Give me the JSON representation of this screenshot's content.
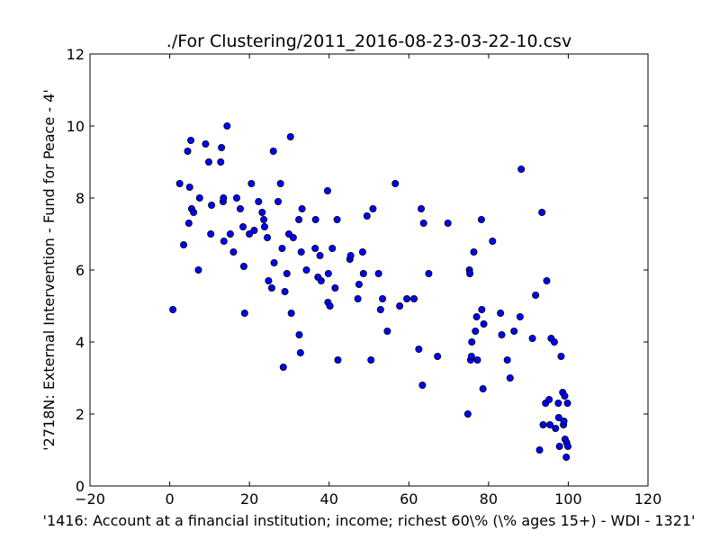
{
  "chart_data": {
    "type": "scatter",
    "title": "./For Clustering/2011_2016-08-23-03-22-10.csv",
    "xlabel": "'1416: Account at a financial institution; income; richest 60\\%  (\\% ages 15+) - WDI - 1321'",
    "ylabel": "'2718N: External Intervention - Fund for Peace - 4'",
    "xlim": [
      -20,
      120
    ],
    "ylim": [
      0,
      12
    ],
    "xticks": [
      -20,
      0,
      20,
      40,
      60,
      80,
      100,
      120
    ],
    "yticks": [
      0,
      2,
      4,
      6,
      8,
      10,
      12
    ],
    "grid": false,
    "marker_color": "#0000ff",
    "points": [
      [
        0.8,
        4.9
      ],
      [
        2.5,
        8.4
      ],
      [
        3.5,
        6.7
      ],
      [
        4.5,
        9.3
      ],
      [
        4.8,
        7.3
      ],
      [
        5.0,
        8.3
      ],
      [
        5.3,
        9.6
      ],
      [
        5.5,
        7.7
      ],
      [
        6.0,
        7.6
      ],
      [
        7.2,
        6.0
      ],
      [
        7.5,
        8.0
      ],
      [
        9.0,
        9.5
      ],
      [
        9.8,
        9.0
      ],
      [
        10.3,
        7.0
      ],
      [
        10.5,
        7.8
      ],
      [
        12.8,
        9.0
      ],
      [
        13.0,
        9.4
      ],
      [
        13.4,
        7.9
      ],
      [
        13.5,
        8.0
      ],
      [
        13.6,
        6.8
      ],
      [
        14.4,
        10.0
      ],
      [
        15.2,
        7.0
      ],
      [
        16.0,
        6.5
      ],
      [
        16.8,
        8.0
      ],
      [
        17.7,
        7.7
      ],
      [
        18.4,
        7.2
      ],
      [
        18.6,
        6.1
      ],
      [
        18.8,
        4.8
      ],
      [
        20.0,
        7.0
      ],
      [
        20.5,
        8.4
      ],
      [
        21.2,
        7.1
      ],
      [
        22.3,
        7.9
      ],
      [
        23.2,
        7.6
      ],
      [
        23.6,
        7.4
      ],
      [
        23.8,
        7.2
      ],
      [
        24.5,
        6.9
      ],
      [
        24.8,
        5.7
      ],
      [
        25.6,
        5.5
      ],
      [
        26.0,
        9.3
      ],
      [
        26.2,
        6.2
      ],
      [
        27.2,
        7.9
      ],
      [
        27.8,
        8.4
      ],
      [
        28.2,
        6.6
      ],
      [
        28.5,
        3.3
      ],
      [
        28.9,
        5.4
      ],
      [
        29.4,
        5.9
      ],
      [
        29.9,
        7.0
      ],
      [
        30.3,
        9.7
      ],
      [
        30.5,
        4.8
      ],
      [
        31.0,
        6.9
      ],
      [
        32.4,
        7.4
      ],
      [
        32.5,
        4.2
      ],
      [
        32.8,
        3.7
      ],
      [
        33.0,
        6.5
      ],
      [
        33.2,
        7.7
      ],
      [
        34.3,
        6.0
      ],
      [
        36.5,
        6.6
      ],
      [
        36.6,
        7.4
      ],
      [
        37.2,
        5.8
      ],
      [
        37.7,
        6.4
      ],
      [
        38.0,
        5.7
      ],
      [
        39.6,
        8.2
      ],
      [
        39.7,
        5.1
      ],
      [
        39.8,
        5.9
      ],
      [
        40.2,
        5.0
      ],
      [
        40.8,
        6.6
      ],
      [
        41.5,
        5.5
      ],
      [
        42.0,
        7.4
      ],
      [
        42.2,
        3.5
      ],
      [
        45.2,
        6.3
      ],
      [
        45.4,
        6.4
      ],
      [
        47.2,
        5.2
      ],
      [
        47.5,
        5.6
      ],
      [
        48.4,
        6.5
      ],
      [
        48.6,
        5.9
      ],
      [
        49.5,
        7.5
      ],
      [
        50.5,
        3.5
      ],
      [
        51.0,
        7.7
      ],
      [
        52.4,
        5.9
      ],
      [
        52.9,
        4.9
      ],
      [
        53.4,
        5.2
      ],
      [
        54.6,
        4.3
      ],
      [
        56.6,
        8.4
      ],
      [
        57.7,
        5.0
      ],
      [
        59.5,
        5.2
      ],
      [
        61.3,
        5.2
      ],
      [
        62.5,
        3.8
      ],
      [
        63.1,
        7.7
      ],
      [
        63.4,
        2.8
      ],
      [
        63.7,
        7.3
      ],
      [
        65.0,
        5.9
      ],
      [
        67.2,
        3.6
      ],
      [
        69.8,
        7.3
      ],
      [
        74.8,
        2.0
      ],
      [
        75.2,
        6.0
      ],
      [
        75.3,
        5.9
      ],
      [
        75.5,
        3.5
      ],
      [
        75.7,
        3.6
      ],
      [
        75.8,
        4.0
      ],
      [
        76.3,
        6.5
      ],
      [
        76.7,
        4.3
      ],
      [
        77.0,
        4.7
      ],
      [
        77.2,
        3.5
      ],
      [
        78.2,
        7.4
      ],
      [
        78.3,
        4.9
      ],
      [
        78.6,
        2.7
      ],
      [
        78.8,
        4.5
      ],
      [
        81.0,
        6.8
      ],
      [
        83.0,
        4.8
      ],
      [
        83.3,
        4.2
      ],
      [
        84.7,
        3.5
      ],
      [
        85.4,
        3.0
      ],
      [
        86.4,
        4.3
      ],
      [
        87.9,
        4.7
      ],
      [
        88.2,
        8.8
      ],
      [
        91.0,
        4.1
      ],
      [
        91.8,
        5.3
      ],
      [
        92.8,
        1.0
      ],
      [
        93.4,
        7.6
      ],
      [
        93.7,
        1.7
      ],
      [
        94.3,
        2.3
      ],
      [
        94.6,
        5.7
      ],
      [
        95.2,
        2.4
      ],
      [
        95.4,
        1.7
      ],
      [
        95.7,
        4.1
      ],
      [
        96.5,
        4.0
      ],
      [
        96.8,
        1.6
      ],
      [
        97.5,
        2.3
      ],
      [
        97.6,
        1.9
      ],
      [
        97.8,
        1.1
      ],
      [
        98.2,
        3.6
      ],
      [
        98.6,
        2.6
      ],
      [
        98.8,
        1.7
      ],
      [
        98.9,
        1.8
      ],
      [
        99.1,
        2.5
      ],
      [
        99.2,
        1.3
      ],
      [
        99.5,
        0.8
      ],
      [
        99.6,
        1.2
      ],
      [
        99.8,
        2.3
      ],
      [
        99.9,
        1.1
      ]
    ]
  }
}
